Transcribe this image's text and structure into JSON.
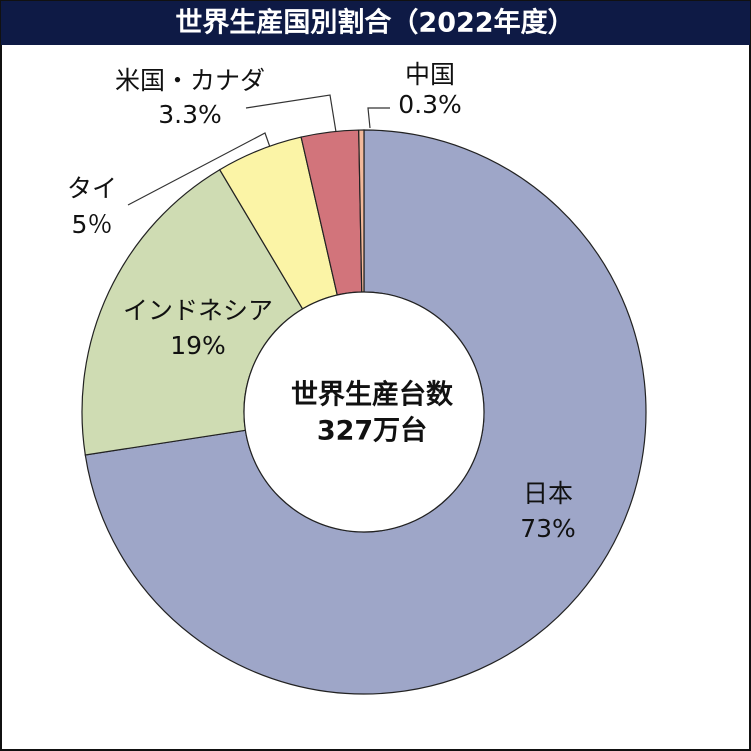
{
  "chart_data": {
    "type": "donut",
    "title": "世界生産国別割合（2022年度）",
    "center_text": [
      "世界生産台数",
      "327万台"
    ],
    "categories": [
      "日本",
      "インドネシア",
      "タイ",
      "米国・カナダ",
      "中国"
    ],
    "values": [
      73,
      19,
      5,
      3.3,
      0.3
    ],
    "value_labels": [
      "73%",
      "19%",
      "5％",
      "3.3%",
      "0.3%"
    ],
    "colors": [
      "#9ea6c8",
      "#cfdcb3",
      "#fbf4a6",
      "#d2747b",
      "#f2b99b"
    ]
  }
}
